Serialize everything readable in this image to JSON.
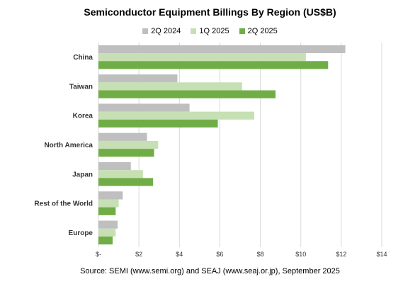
{
  "chart_data": {
    "type": "bar",
    "orientation": "horizontal",
    "title": "Semiconductor Equipment Billings By Region (US$B)",
    "categories": [
      "China",
      "Taiwan",
      "Korea",
      "North America",
      "Japan",
      "Rest of the World",
      "Europe"
    ],
    "series": [
      {
        "name": "2Q 2024",
        "color": "#bfbfbf",
        "values": [
          12.2,
          3.9,
          4.5,
          2.4,
          1.6,
          1.2,
          0.95
        ]
      },
      {
        "name": "1Q 2025",
        "color": "#c6e0b4",
        "values": [
          10.25,
          7.1,
          7.7,
          2.95,
          2.2,
          1.0,
          0.85
        ]
      },
      {
        "name": "2Q 2025",
        "color": "#70ad47",
        "values": [
          11.35,
          8.75,
          5.9,
          2.75,
          2.7,
          0.85,
          0.7
        ]
      }
    ],
    "xlim": [
      0,
      14
    ],
    "ticks": [
      0,
      2,
      4,
      6,
      8,
      10,
      12,
      14
    ],
    "tick_labels": [
      "$-",
      "$2",
      "$4",
      "$6",
      "$8",
      "$10",
      "$12",
      "$14"
    ],
    "grid": true,
    "legend_position": "top"
  },
  "footer": {
    "source": "Source: SEMI (www.semi.org) and SEAJ (www.seaj.or.jp), September 2025"
  }
}
